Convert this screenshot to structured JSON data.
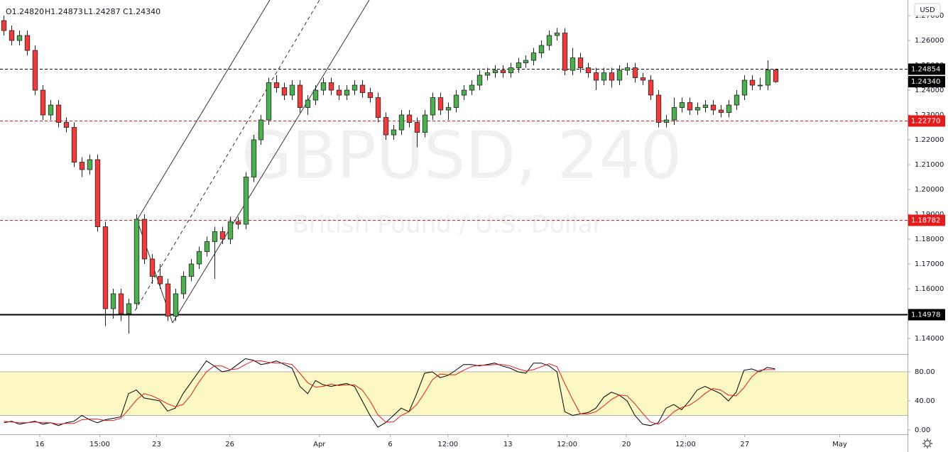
{
  "chart_data": {
    "type": "candlestick",
    "ohlc_header": [
      "O1.24820",
      "H1.24873",
      "L1.24287",
      "C1.24340"
    ],
    "watermark": "GBPUSD, 240",
    "watermark_subtitle": "British Pound / U.S. Dollar",
    "currency": "USD",
    "up_color": "#4caf50",
    "down_color": "#ef3b3b",
    "candles": [
      [
        1.268,
        1.27,
        1.262,
        1.264
      ],
      [
        1.264,
        1.266,
        1.258,
        1.26
      ],
      [
        1.26,
        1.264,
        1.258,
        1.262
      ],
      [
        1.262,
        1.264,
        1.254,
        1.256
      ],
      [
        1.256,
        1.258,
        1.238,
        1.24
      ],
      [
        1.24,
        1.242,
        1.228,
        1.23
      ],
      [
        1.23,
        1.236,
        1.228,
        1.234
      ],
      [
        1.234,
        1.236,
        1.225,
        1.227
      ],
      [
        1.227,
        1.229,
        1.223,
        1.225
      ],
      [
        1.225,
        1.227,
        1.209,
        1.211
      ],
      [
        1.211,
        1.213,
        1.205,
        1.208
      ],
      [
        1.208,
        1.214,
        1.206,
        1.212
      ],
      [
        1.212,
        1.214,
        1.183,
        1.185
      ],
      [
        1.185,
        1.187,
        1.145,
        1.152
      ],
      [
        1.152,
        1.16,
        1.148,
        1.158
      ],
      [
        1.158,
        1.16,
        1.147,
        1.15
      ],
      [
        1.15,
        1.156,
        1.142,
        1.154
      ],
      [
        1.154,
        1.19,
        1.152,
        1.188
      ],
      [
        1.188,
        1.19,
        1.17,
        1.172
      ],
      [
        1.172,
        1.174,
        1.162,
        1.165
      ],
      [
        1.165,
        1.17,
        1.16,
        1.162
      ],
      [
        1.162,
        1.164,
        1.147,
        1.149
      ],
      [
        1.149,
        1.16,
        1.147,
        1.158
      ],
      [
        1.158,
        1.167,
        1.156,
        1.165
      ],
      [
        1.165,
        1.172,
        1.163,
        1.17
      ],
      [
        1.17,
        1.177,
        1.168,
        1.175
      ],
      [
        1.175,
        1.181,
        1.173,
        1.179
      ],
      [
        1.179,
        1.185,
        1.164,
        1.183
      ],
      [
        1.183,
        1.185,
        1.178,
        1.18
      ],
      [
        1.18,
        1.189,
        1.178,
        1.187
      ],
      [
        1.187,
        1.189,
        1.184,
        1.186
      ],
      [
        1.186,
        1.207,
        1.184,
        1.205
      ],
      [
        1.205,
        1.222,
        1.203,
        1.22
      ],
      [
        1.22,
        1.23,
        1.218,
        1.228
      ],
      [
        1.228,
        1.245,
        1.226,
        1.243
      ],
      [
        1.243,
        1.246,
        1.239,
        1.241
      ],
      [
        1.241,
        1.243,
        1.236,
        1.238
      ],
      [
        1.238,
        1.244,
        1.236,
        1.242
      ],
      [
        1.242,
        1.244,
        1.231,
        1.233
      ],
      [
        1.233,
        1.238,
        1.23,
        1.236
      ],
      [
        1.236,
        1.242,
        1.234,
        1.24
      ],
      [
        1.24,
        1.245,
        1.238,
        1.243
      ],
      [
        1.243,
        1.245,
        1.238,
        1.24
      ],
      [
        1.24,
        1.242,
        1.236,
        1.238
      ],
      [
        1.238,
        1.242,
        1.236,
        1.24
      ],
      [
        1.24,
        1.244,
        1.238,
        1.242
      ],
      [
        1.242,
        1.244,
        1.237,
        1.239
      ],
      [
        1.239,
        1.241,
        1.235,
        1.237
      ],
      [
        1.237,
        1.239,
        1.227,
        1.229
      ],
      [
        1.229,
        1.231,
        1.22,
        1.222
      ],
      [
        1.222,
        1.226,
        1.22,
        1.224
      ],
      [
        1.224,
        1.232,
        1.222,
        1.23
      ],
      [
        1.23,
        1.232,
        1.225,
        1.227
      ],
      [
        1.227,
        1.229,
        1.217,
        1.223
      ],
      [
        1.223,
        1.232,
        1.221,
        1.23
      ],
      [
        1.23,
        1.239,
        1.228,
        1.237
      ],
      [
        1.237,
        1.239,
        1.23,
        1.232
      ],
      [
        1.232,
        1.235,
        1.228,
        1.233
      ],
      [
        1.233,
        1.24,
        1.231,
        1.238
      ],
      [
        1.238,
        1.242,
        1.236,
        1.24
      ],
      [
        1.24,
        1.244,
        1.238,
        1.242
      ],
      [
        1.242,
        1.248,
        1.24,
        1.246
      ],
      [
        1.246,
        1.249,
        1.244,
        1.247
      ],
      [
        1.247,
        1.25,
        1.245,
        1.248
      ],
      [
        1.248,
        1.25,
        1.245,
        1.247
      ],
      [
        1.247,
        1.251,
        1.245,
        1.249
      ],
      [
        1.249,
        1.253,
        1.247,
        1.251
      ],
      [
        1.251,
        1.254,
        1.249,
        1.252
      ],
      [
        1.252,
        1.257,
        1.25,
        1.255
      ],
      [
        1.255,
        1.26,
        1.253,
        1.258
      ],
      [
        1.258,
        1.264,
        1.256,
        1.262
      ],
      [
        1.262,
        1.265,
        1.26,
        1.263
      ],
      [
        1.263,
        1.265,
        1.246,
        1.248
      ],
      [
        1.248,
        1.257,
        1.246,
        1.253
      ],
      [
        1.253,
        1.255,
        1.247,
        1.249
      ],
      [
        1.249,
        1.251,
        1.245,
        1.247
      ],
      [
        1.247,
        1.249,
        1.24,
        1.244
      ],
      [
        1.244,
        1.249,
        1.242,
        1.247
      ],
      [
        1.247,
        1.249,
        1.241,
        1.244
      ],
      [
        1.244,
        1.25,
        1.242,
        1.248
      ],
      [
        1.248,
        1.251,
        1.246,
        1.249
      ],
      [
        1.249,
        1.251,
        1.243,
        1.245
      ],
      [
        1.245,
        1.247,
        1.242,
        1.244
      ],
      [
        1.244,
        1.246,
        1.236,
        1.238
      ],
      [
        1.238,
        1.24,
        1.225,
        1.227
      ],
      [
        1.227,
        1.23,
        1.225,
        1.228
      ],
      [
        1.228,
        1.237,
        1.226,
        1.233
      ],
      [
        1.233,
        1.237,
        1.231,
        1.235
      ],
      [
        1.235,
        1.237,
        1.23,
        1.232
      ],
      [
        1.232,
        1.235,
        1.23,
        1.233
      ],
      [
        1.233,
        1.236,
        1.231,
        1.234
      ],
      [
        1.234,
        1.236,
        1.23,
        1.232
      ],
      [
        1.232,
        1.234,
        1.229,
        1.231
      ],
      [
        1.231,
        1.236,
        1.229,
        1.234
      ],
      [
        1.234,
        1.24,
        1.232,
        1.238
      ],
      [
        1.238,
        1.246,
        1.236,
        1.244
      ],
      [
        1.244,
        1.246,
        1.24,
        1.242
      ],
      [
        1.242,
        1.245,
        1.24,
        1.242
      ],
      [
        1.242,
        1.252,
        1.24,
        1.2482
      ],
      [
        1.2482,
        1.2487,
        1.2429,
        1.2434
      ]
    ],
    "xlim": [
      -0.5,
      116
    ],
    "xticks": [
      {
        "value": 4.6,
        "label": "16"
      },
      {
        "value": 12.3,
        "label": "15:00"
      },
      {
        "value": 19.6,
        "label": "23"
      },
      {
        "value": 29,
        "label": "26"
      },
      {
        "value": 40.5,
        "label": "Apr"
      },
      {
        "value": 49.6,
        "label": "6"
      },
      {
        "value": 57,
        "label": "12:00"
      },
      {
        "value": 64.7,
        "label": "13"
      },
      {
        "value": 72.3,
        "label": "12:00"
      },
      {
        "value": 79.9,
        "label": "20"
      },
      {
        "value": 87.5,
        "label": "12:00"
      },
      {
        "value": 95.1,
        "label": "27"
      },
      {
        "value": 107.3,
        "label": "May"
      }
    ],
    "ylim": [
      1.134,
      1.2763
    ],
    "yticks": [
      {
        "value": 1.14,
        "label": "1.14000"
      },
      {
        "value": 1.15,
        "label": "1.15000"
      },
      {
        "value": 1.16,
        "label": "1.16000"
      },
      {
        "value": 1.17,
        "label": "1.17000"
      },
      {
        "value": 1.18,
        "label": "1.18000"
      },
      {
        "value": 1.19,
        "label": "1.19000"
      },
      {
        "value": 1.2,
        "label": "1.20000"
      },
      {
        "value": 1.21,
        "label": "1.21000"
      },
      {
        "value": 1.22,
        "label": "1.22000"
      },
      {
        "value": 1.23,
        "label": "1.23000"
      },
      {
        "value": 1.24,
        "label": "1.24000"
      },
      {
        "value": 1.25,
        "label": "1.25000"
      },
      {
        "value": 1.26,
        "label": "1.26000"
      },
      {
        "value": 1.27,
        "label": "1.27000"
      }
    ],
    "price_lines": [
      {
        "value": 1.24854,
        "label": "1.24854",
        "color": "#000000",
        "dash": true
      },
      {
        "value": 1.2277,
        "label": "1.22770",
        "color": "#e31b1b",
        "dash": true
      },
      {
        "value": 1.18782,
        "label": "1.18782",
        "color": "#e31b1b",
        "dash": true
      },
      {
        "value": 1.14978,
        "label": "1.14978",
        "color": "#000000",
        "dash": false
      }
    ],
    "last_price": {
      "value": 1.2434,
      "label": "1.24340"
    },
    "oscillator": {
      "ylim": [
        -5.9,
        103.4
      ],
      "yticks": [
        {
          "value": 0,
          "label": "0.00"
        },
        {
          "value": 40,
          "label": "40.00"
        },
        {
          "value": 80,
          "label": "80.00"
        }
      ],
      "band": [
        20,
        80
      ],
      "band_color": "#fbf8c4",
      "series": [
        {
          "color": "#000000",
          "values": [
            10,
            12,
            8,
            10,
            12,
            8,
            10,
            6,
            10,
            12,
            20,
            14,
            10,
            14,
            16,
            18,
            50,
            55,
            44,
            42,
            40,
            26,
            30,
            50,
            65,
            80,
            95,
            88,
            80,
            82,
            90,
            98,
            96,
            90,
            92,
            95,
            90,
            85,
            60,
            50,
            68,
            62,
            60,
            62,
            64,
            60,
            40,
            20,
            4,
            10,
            20,
            30,
            25,
            50,
            78,
            80,
            72,
            75,
            82,
            90,
            90,
            88,
            90,
            92,
            88,
            85,
            80,
            78,
            92,
            92,
            88,
            80,
            25,
            20,
            22,
            24,
            30,
            45,
            52,
            48,
            40,
            20,
            8,
            6,
            10,
            30,
            35,
            28,
            40,
            55,
            60,
            55,
            50,
            40,
            52,
            82,
            84,
            80,
            86,
            84
          ]
        },
        {
          "color": "#e31b1b",
          "values": [
            12,
            11,
            10,
            10,
            11,
            10,
            10,
            8,
            9,
            9,
            14,
            15,
            15,
            13,
            13,
            16,
            28,
            41,
            50,
            47,
            42,
            36,
            32,
            35,
            48,
            65,
            80,
            88,
            88,
            83,
            84,
            90,
            95,
            95,
            93,
            92,
            92,
            90,
            78,
            65,
            59,
            60,
            63,
            61,
            62,
            62,
            55,
            40,
            21,
            11,
            11,
            20,
            25,
            35,
            51,
            69,
            77,
            76,
            76,
            82,
            87,
            89,
            89,
            90,
            90,
            88,
            84,
            81,
            83,
            87,
            91,
            87,
            64,
            42,
            22,
            22,
            25,
            33,
            42,
            48,
            47,
            36,
            23,
            11,
            8,
            15,
            25,
            31,
            34,
            41,
            50,
            57,
            55,
            48,
            47,
            58,
            73,
            82,
            83,
            83
          ]
        }
      ]
    }
  }
}
